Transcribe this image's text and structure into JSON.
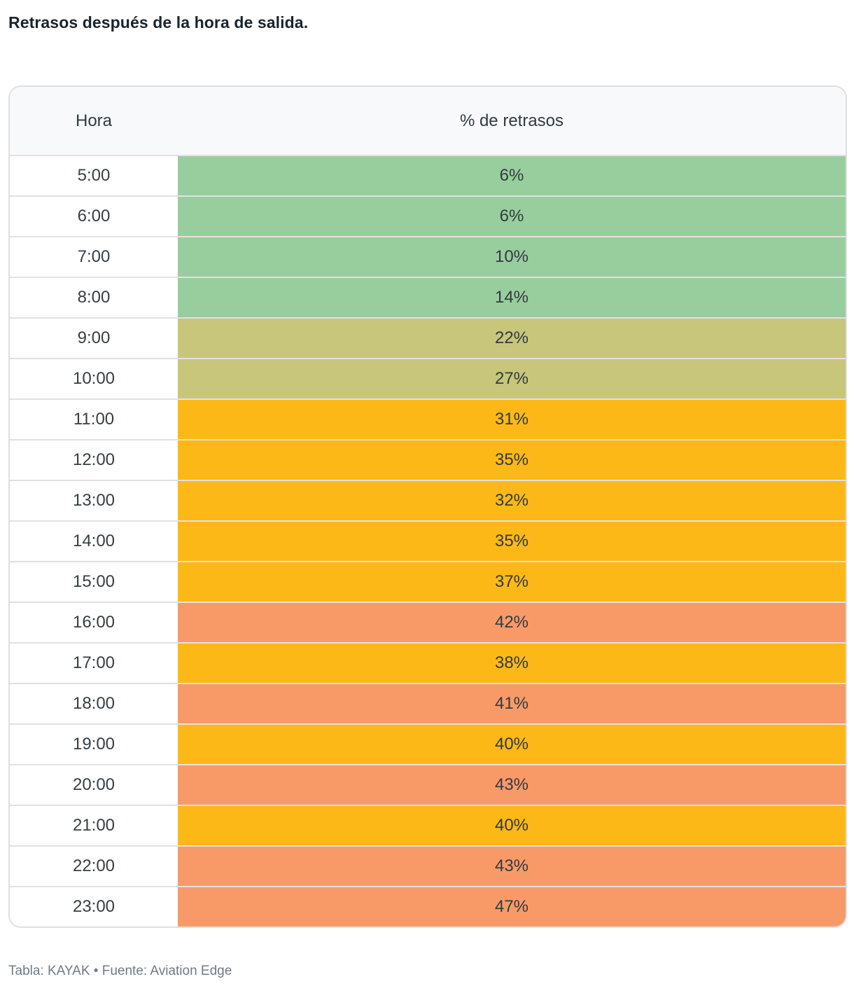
{
  "title": "Retrasos después de la hora de salida.",
  "colors": {
    "green": "#98ce9d",
    "olive": "#c7c67b",
    "amber": "#fbb817",
    "salmon": "#f89a68",
    "header_bg": "#f8f9fb",
    "border": "#dfdfe2",
    "divider": "#e1e1e3"
  },
  "table": {
    "headers": {
      "hour": "Hora",
      "value": "% de retrasos"
    },
    "rows": [
      {
        "hour": "5:00",
        "value": "6%",
        "color": "green"
      },
      {
        "hour": "6:00",
        "value": "6%",
        "color": "green"
      },
      {
        "hour": "7:00",
        "value": "10%",
        "color": "green"
      },
      {
        "hour": "8:00",
        "value": "14%",
        "color": "green"
      },
      {
        "hour": "9:00",
        "value": "22%",
        "color": "olive"
      },
      {
        "hour": "10:00",
        "value": "27%",
        "color": "olive"
      },
      {
        "hour": "11:00",
        "value": "31%",
        "color": "amber"
      },
      {
        "hour": "12:00",
        "value": "35%",
        "color": "amber"
      },
      {
        "hour": "13:00",
        "value": "32%",
        "color": "amber"
      },
      {
        "hour": "14:00",
        "value": "35%",
        "color": "amber"
      },
      {
        "hour": "15:00",
        "value": "37%",
        "color": "amber"
      },
      {
        "hour": "16:00",
        "value": "42%",
        "color": "salmon"
      },
      {
        "hour": "17:00",
        "value": "38%",
        "color": "amber"
      },
      {
        "hour": "18:00",
        "value": "41%",
        "color": "salmon"
      },
      {
        "hour": "19:00",
        "value": "40%",
        "color": "amber"
      },
      {
        "hour": "20:00",
        "value": "43%",
        "color": "salmon"
      },
      {
        "hour": "21:00",
        "value": "40%",
        "color": "amber"
      },
      {
        "hour": "22:00",
        "value": "43%",
        "color": "salmon"
      },
      {
        "hour": "23:00",
        "value": "47%",
        "color": "salmon"
      }
    ]
  },
  "caption": "Tabla: KAYAK • Fuente: Aviation Edge",
  "chart_data": {
    "type": "table",
    "title": "Retrasos después de la hora de salida.",
    "columns": [
      "Hora",
      "% de retrasos"
    ],
    "categories": [
      "5:00",
      "6:00",
      "7:00",
      "8:00",
      "9:00",
      "10:00",
      "11:00",
      "12:00",
      "13:00",
      "14:00",
      "15:00",
      "16:00",
      "17:00",
      "18:00",
      "19:00",
      "20:00",
      "21:00",
      "22:00",
      "23:00"
    ],
    "values": [
      6,
      6,
      10,
      14,
      22,
      27,
      31,
      35,
      32,
      35,
      37,
      42,
      38,
      41,
      40,
      43,
      40,
      43,
      47
    ],
    "value_unit": "%",
    "cell_color_scale": [
      "green: low delay",
      "olive: medium",
      "amber: high",
      "salmon: highest"
    ],
    "cell_colors": [
      "green",
      "green",
      "green",
      "green",
      "olive",
      "olive",
      "amber",
      "amber",
      "amber",
      "amber",
      "amber",
      "salmon",
      "amber",
      "salmon",
      "amber",
      "salmon",
      "amber",
      "salmon",
      "salmon"
    ],
    "caption": "Tabla: KAYAK • Fuente: Aviation Edge"
  }
}
